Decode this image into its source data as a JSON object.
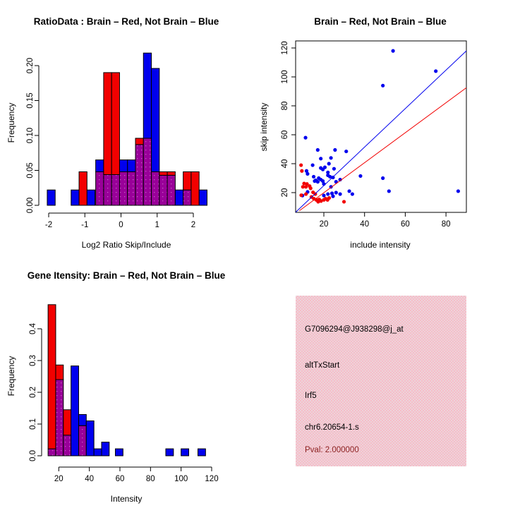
{
  "colors": {
    "blue": "#0000ee",
    "red": "#f20000",
    "overlap_purple": "#990099",
    "overlap_purple_dot": "#c55ac5",
    "panel_pink": "#f3c3cc",
    "pval_dark_red": "#8b1f1f",
    "axis_black": "#000000",
    "background": "#ffffff"
  },
  "legend": {
    "red": "Brain",
    "blue": "Not Brain"
  },
  "chart_data": [
    {
      "id": "ratio-histogram",
      "type": "bar",
      "title": "RatioData : Brain – Red, Not Brain – Blue",
      "xlabel": "Log2 Ratio Skip/Include",
      "ylabel": "Frequency",
      "xticks": [
        -2,
        -1,
        0,
        1,
        2
      ],
      "xtick_labels": [
        "-2",
        "-1",
        "0",
        "1",
        "2"
      ],
      "yticks": [
        0,
        0.05,
        0.1,
        0.15,
        0.2
      ],
      "ytick_labels": [
        "0.00",
        "0.05",
        "0.10",
        "0.15",
        "0.20"
      ],
      "xlim": [
        -2.1,
        2.4
      ],
      "ylim": [
        0,
        0.22
      ],
      "bin_width": 0.22,
      "bars": [
        {
          "x0": -2.04,
          "blue": 0.022,
          "red": 0
        },
        {
          "x0": -1.38,
          "blue": 0.022,
          "red": 0
        },
        {
          "x0": -1.16,
          "blue": 0,
          "red": 0.048
        },
        {
          "x0": -0.94,
          "blue": 0.022,
          "red": 0
        },
        {
          "x0": -0.7,
          "blue": 0.065,
          "red": 0.048
        },
        {
          "x0": -0.48,
          "blue": 0.044,
          "red": 0.19
        },
        {
          "x0": -0.26,
          "blue": 0.044,
          "red": 0.19
        },
        {
          "x0": -0.04,
          "blue": 0.065,
          "red": 0.048
        },
        {
          "x0": 0.18,
          "blue": 0.065,
          "red": 0.048
        },
        {
          "x0": 0.4,
          "blue": 0.087,
          "red": 0.096
        },
        {
          "x0": 0.62,
          "blue": 0.218,
          "red": 0.096
        },
        {
          "x0": 0.84,
          "blue": 0.196,
          "red": 0.048
        },
        {
          "x0": 1.06,
          "blue": 0.043,
          "red": 0.048
        },
        {
          "x0": 1.28,
          "blue": 0.043,
          "red": 0.048
        },
        {
          "x0": 1.5,
          "blue": 0.022,
          "red": 0
        },
        {
          "x0": 1.72,
          "blue": 0.022,
          "red": 0.048
        },
        {
          "x0": 1.94,
          "blue": 0,
          "red": 0.048
        },
        {
          "x0": 2.16,
          "blue": 0.022,
          "red": 0
        }
      ]
    },
    {
      "id": "intensity-scatter",
      "type": "scatter",
      "title": "Brain – Red, Not Brain – Blue",
      "xlabel": "include intensity",
      "ylabel": "skip intensity",
      "xticks": [
        20,
        40,
        60,
        80
      ],
      "xtick_labels": [
        "20",
        "40",
        "60",
        "80"
      ],
      "yticks": [
        20,
        40,
        60,
        80,
        100,
        120
      ],
      "ytick_labels": [
        "20",
        "40",
        "60",
        "80",
        "100",
        "120"
      ],
      "xlim": [
        6,
        90
      ],
      "ylim": [
        6,
        125
      ],
      "blue_points": [
        [
          11,
          58
        ],
        [
          17,
          49.5
        ],
        [
          25.5,
          49.5
        ],
        [
          31,
          48.5
        ],
        [
          18.5,
          43.5
        ],
        [
          23.5,
          44
        ],
        [
          14.5,
          39
        ],
        [
          22.5,
          40
        ],
        [
          20.5,
          37.5
        ],
        [
          18.5,
          37
        ],
        [
          19.5,
          36
        ],
        [
          25,
          36.5
        ],
        [
          11.5,
          35
        ],
        [
          22,
          34
        ],
        [
          12,
          33
        ],
        [
          22,
          32
        ],
        [
          23,
          31
        ],
        [
          24.5,
          30.5
        ],
        [
          15,
          31
        ],
        [
          17.5,
          30
        ],
        [
          16,
          28.5
        ],
        [
          18.5,
          29
        ],
        [
          19.5,
          28
        ],
        [
          15.5,
          28
        ],
        [
          17,
          27.5
        ],
        [
          26,
          27.5
        ],
        [
          28,
          29
        ],
        [
          20,
          26
        ],
        [
          23.5,
          24
        ],
        [
          12,
          20.5
        ],
        [
          9.5,
          18
        ],
        [
          22,
          19
        ],
        [
          24,
          19.5
        ],
        [
          26,
          20
        ],
        [
          28,
          19
        ],
        [
          24.5,
          17.5
        ],
        [
          20,
          18
        ],
        [
          32.5,
          21
        ],
        [
          34,
          19
        ],
        [
          38,
          31.5
        ],
        [
          49,
          30
        ],
        [
          52,
          21
        ],
        [
          86,
          21
        ],
        [
          49,
          94
        ],
        [
          75,
          104
        ],
        [
          54,
          118
        ]
      ],
      "red_points": [
        [
          8.8,
          39
        ],
        [
          9.2,
          35
        ],
        [
          10.3,
          26.3
        ],
        [
          11.7,
          26
        ],
        [
          9.7,
          24
        ],
        [
          11.2,
          24
        ],
        [
          13,
          24.5
        ],
        [
          13.5,
          23
        ],
        [
          8.9,
          18.2
        ],
        [
          11.2,
          19
        ],
        [
          14.7,
          20.2
        ],
        [
          15.8,
          19
        ],
        [
          13.9,
          17
        ],
        [
          15.1,
          15.8
        ],
        [
          16.3,
          15
        ],
        [
          17.7,
          15.3
        ],
        [
          17.2,
          13.7
        ],
        [
          18.6,
          14.2
        ],
        [
          20,
          15
        ],
        [
          20.9,
          15.8
        ],
        [
          21.8,
          15
        ],
        [
          22.6,
          16.3
        ],
        [
          29.9,
          13.7
        ]
      ],
      "blue_line": {
        "x1": 6.2,
        "y1": 6.5,
        "x2": 90,
        "y2": 118
      },
      "red_line": {
        "x1": 8,
        "y1": 7.5,
        "x2": 90,
        "y2": 92.5
      }
    },
    {
      "id": "gene-intensity-histogram",
      "type": "bar",
      "title": "Gene Itensity: Brain – Red, Not Brain – Blue",
      "xlabel": "Intensity",
      "ylabel": "Frequency",
      "xticks": [
        20,
        40,
        60,
        80,
        100,
        120
      ],
      "xtick_labels": [
        "20",
        "40",
        "60",
        "80",
        "100",
        "120"
      ],
      "yticks": [
        0,
        0.1,
        0.2,
        0.3,
        0.4
      ],
      "ytick_labels": [
        "0.0",
        "0.1",
        "0.2",
        "0.3",
        "0.4"
      ],
      "xlim": [
        13,
        120
      ],
      "ylim": [
        0,
        0.48
      ],
      "bin_width": 5,
      "bars": [
        {
          "x0": 13,
          "blue": 0.022,
          "red": 0.476
        },
        {
          "x0": 18,
          "blue": 0.24,
          "red": 0.286
        },
        {
          "x0": 23,
          "blue": 0.065,
          "red": 0.145
        },
        {
          "x0": 28,
          "blue": 0.283,
          "red": 0
        },
        {
          "x0": 33,
          "blue": 0.13,
          "red": 0.095
        },
        {
          "x0": 38,
          "blue": 0.11,
          "red": 0
        },
        {
          "x0": 43,
          "blue": 0.022,
          "red": 0
        },
        {
          "x0": 48,
          "blue": 0.043,
          "red": 0
        },
        {
          "x0": 57,
          "blue": 0.022,
          "red": 0
        },
        {
          "x0": 90,
          "blue": 0.022,
          "red": 0
        },
        {
          "x0": 100,
          "blue": 0.022,
          "red": 0
        },
        {
          "x0": 111,
          "blue": 0.022,
          "red": 0
        }
      ]
    },
    {
      "id": "gene-info",
      "type": "info",
      "probe_id": "G7096294@J938298@j_at",
      "event_type": "altTxStart",
      "gene": "Irf5",
      "locus": "chr6.20654-1.s",
      "pval": "Pval: 2.000000"
    }
  ]
}
